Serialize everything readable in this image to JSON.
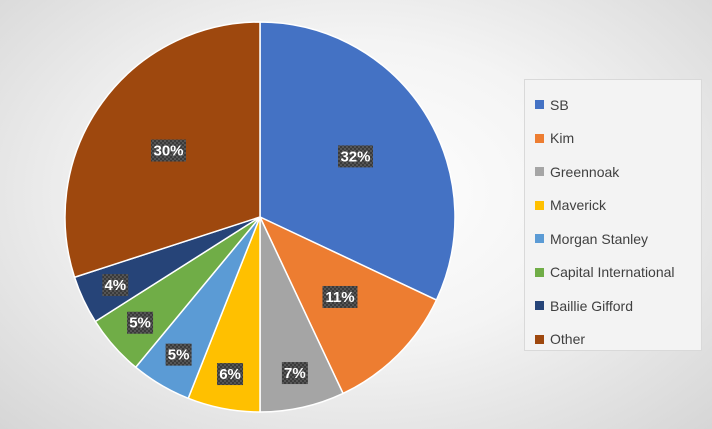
{
  "chart_data": {
    "type": "pie",
    "title": "",
    "legend_position": "right",
    "slices": [
      {
        "name": "SB",
        "value": 32,
        "label": "32%",
        "color": "#4472C4"
      },
      {
        "name": "Kim",
        "value": 11,
        "label": "11%",
        "color": "#ED7D31"
      },
      {
        "name": "Greennoak",
        "value": 7,
        "label": "7%",
        "color": "#A5A5A5"
      },
      {
        "name": "Maverick",
        "value": 6,
        "label": "6%",
        "color": "#FFC000"
      },
      {
        "name": "Morgan Stanley",
        "value": 5,
        "label": "5%",
        "color": "#5B9BD5"
      },
      {
        "name": "Capital International",
        "value": 5,
        "label": "5%",
        "color": "#70AD47"
      },
      {
        "name": "Baillie Gifford",
        "value": 4,
        "label": "4%",
        "color": "#264478"
      },
      {
        "name": "Other",
        "value": 30,
        "label": "30%",
        "color": "#9E480E"
      }
    ]
  }
}
